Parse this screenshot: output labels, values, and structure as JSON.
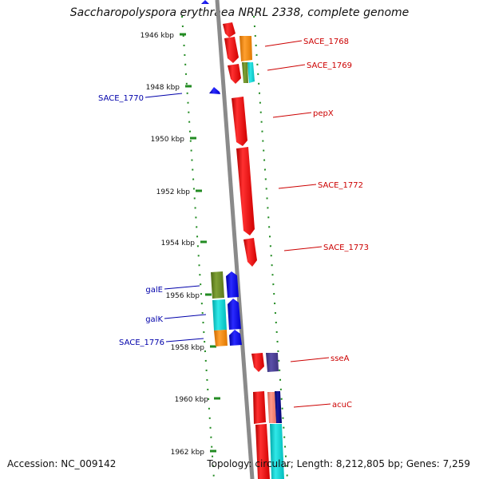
{
  "title": "Saccharopolyspora erythraea NRRL 2338, complete genome",
  "footer": {
    "accession": "Accession: NC_009142",
    "summary": "Topology: circular; Length: 8,212,805 bp; Genes: 7,259"
  },
  "ruler": {
    "ticks": [
      "1946 kbp",
      "1948 kbp",
      "1950 kbp",
      "1952 kbp",
      "1954 kbp",
      "1956 kbp",
      "1958 kbp",
      "1960 kbp",
      "1962 kbp"
    ]
  },
  "forward_labels": [
    "SACE_1768",
    "SACE_1769",
    "pepX",
    "SACE_1772",
    "SACE_1773",
    "sseA",
    "acuC"
  ],
  "reverse_labels": [
    "SACE_1770",
    "galE",
    "galK",
    "SACE_1776"
  ],
  "colors": {
    "forward_label": "#cc0000",
    "reverse_label": "#0000aa",
    "gene_red": "#ff0000",
    "gene_blue": "#0000ff",
    "gene_orange": "#ff8c00",
    "gene_olive": "#6b8e23",
    "gene_cyan": "#00cccc",
    "gene_slate": "#483d8b",
    "gene_salmon": "#fa8072",
    "gene_navy": "#000080",
    "backbone": "#888888",
    "ruler_dash": "#228b22"
  }
}
